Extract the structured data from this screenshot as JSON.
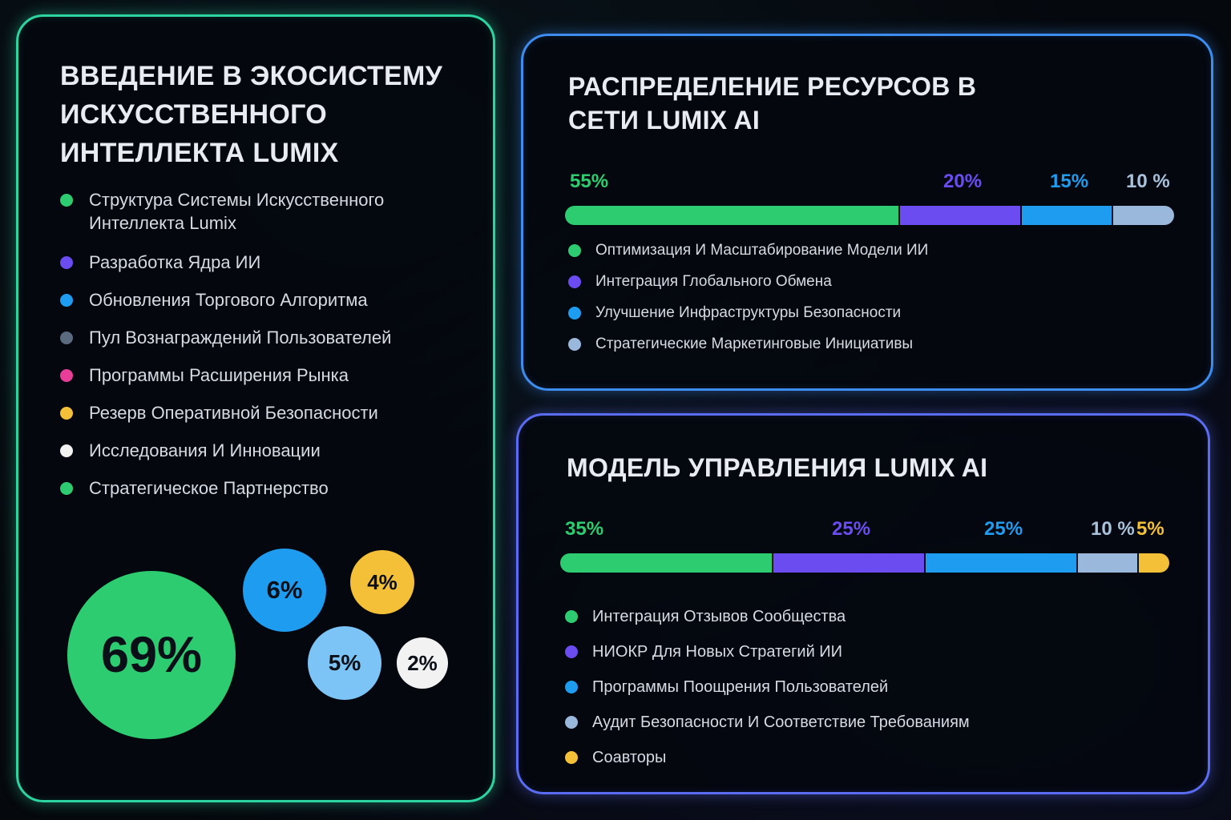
{
  "chart_data": [
    {
      "type": "bubble",
      "title": "Введение в экосистему искусственного интеллекта Lumix",
      "legend": [
        {
          "label": "Структура Системы Искусственного Интеллекта Lumix",
          "color": "#2ecc71"
        },
        {
          "label": "Разработка Ядра ИИ",
          "color": "#6a4cf0"
        },
        {
          "label": "Обновления Торгового Алгоритма",
          "color": "#1e9cf0"
        },
        {
          "label": "Пул Вознаграждений Пользователей",
          "color": "#5a6b80"
        },
        {
          "label": "Программы Расширения Рынка",
          "color": "#e83e9a"
        },
        {
          "label": "Резерв Оперативной Безопасности",
          "color": "#f4c037"
        },
        {
          "label": "Исследования И Инновации",
          "color": "#f2f2f2"
        },
        {
          "label": "Стратегическое Партнерство",
          "color": "#2ecc71"
        }
      ],
      "bubbles": [
        {
          "value": 69,
          "label": "69%",
          "color": "#2ecc71"
        },
        {
          "value": 6,
          "label": "6%",
          "color": "#1e9cf0"
        },
        {
          "value": 4,
          "label": "4%",
          "color": "#f4c037"
        },
        {
          "value": 5,
          "label": "5%",
          "color": "#7cc4f5"
        },
        {
          "value": 2,
          "label": "2%",
          "color": "#f2f2f2"
        }
      ]
    },
    {
      "type": "stacked-bar",
      "title": "Распределение ресурсов в сети Lumix AI",
      "segments": [
        {
          "value": 55,
          "label": "55%",
          "name": "Оптимизация И Масштабирование Модели ИИ",
          "color": "#2ecc71"
        },
        {
          "value": 20,
          "label": "20%",
          "name": "Интеграция Глобального Обмена",
          "color": "#6a4cf0"
        },
        {
          "value": 15,
          "label": "15%",
          "name": "Улучшение Инфраструктуры Безопасности",
          "color": "#1e9cf0"
        },
        {
          "value": 10,
          "label": "10 %",
          "name": "Стратегические Маркетинговые Инициативы",
          "color": "#9ab8dc"
        }
      ]
    },
    {
      "type": "stacked-bar",
      "title": "Модель управления Lumix AI",
      "segments": [
        {
          "value": 35,
          "label": "35%",
          "name": "Интеграция Отзывов Сообщества",
          "color": "#2ecc71"
        },
        {
          "value": 25,
          "label": "25%",
          "name": "НИОКР Для Новых Стратегий ИИ",
          "color": "#6a4cf0"
        },
        {
          "value": 25,
          "label": "25%",
          "name": "Программы Поощрения Пользователей",
          "color": "#1e9cf0"
        },
        {
          "value": 10,
          "label": "10 %",
          "name": "Аудит Безопасности И Соответствие Требованиям",
          "color": "#9ab8dc"
        },
        {
          "value": 5,
          "label": "5%",
          "name": "Соавторы",
          "color": "#f4c037"
        }
      ]
    }
  ]
}
